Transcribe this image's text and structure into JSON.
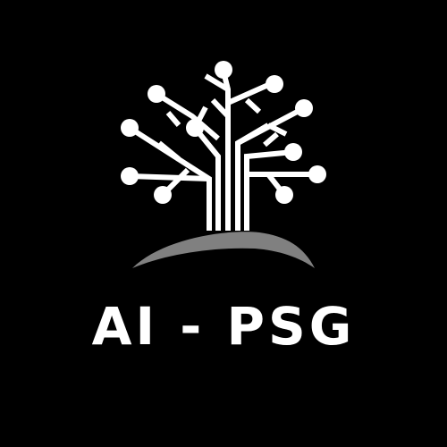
{
  "logo": {
    "wordmark": "AI - PSG",
    "icon": "circuit-tree-icon",
    "colors": {
      "background": "#000000",
      "foreground": "#ffffff",
      "hill": "#808080"
    }
  }
}
